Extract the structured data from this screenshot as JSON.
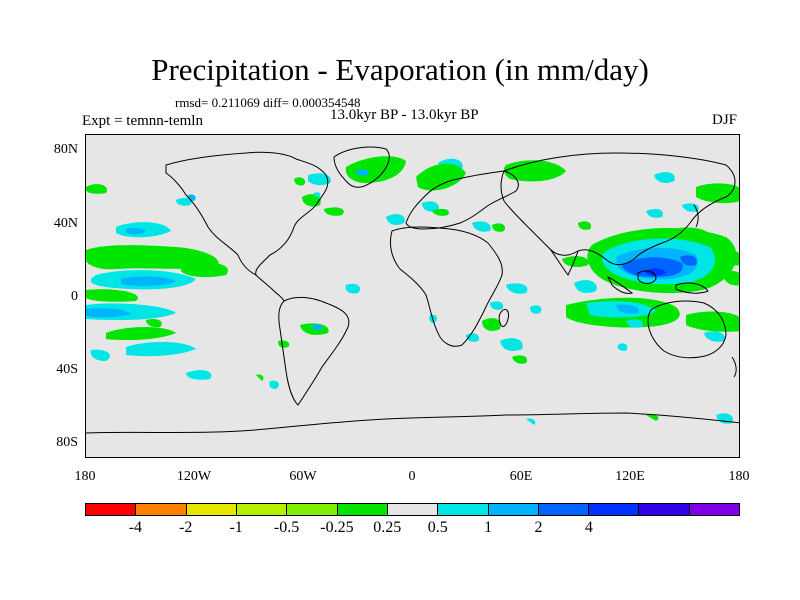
{
  "title": "Precipitation - Evaporation (in mm/day)",
  "stats": "rmsd= 0.211069 diff= 0.000354548",
  "subtitle": "13.0kyr BP - 13.0kyr BP",
  "experiment": "Expt = temnn-temln",
  "season": "DJF",
  "y_ticks": [
    "80N",
    "40N",
    "0",
    "40S",
    "80S"
  ],
  "x_ticks": [
    "180",
    "120W",
    "60W",
    "0",
    "60E",
    "120E",
    "180"
  ],
  "colorbar": {
    "colors": [
      "#ff0000",
      "#ff8000",
      "#e6e600",
      "#b4f000",
      "#82f000",
      "#00e600",
      "#e6e6e6",
      "#00e6e6",
      "#00b4ff",
      "#0064ff",
      "#0032ff",
      "#3200e6",
      "#8200e6"
    ],
    "labels": [
      "-4",
      "-2",
      "-1",
      "-0.5",
      "-0.25",
      "0.25",
      "0.5",
      "1",
      "2",
      "4"
    ]
  },
  "colors": {
    "land_background": "#e6e6e6",
    "coastline": "#000000",
    "light_green": "#82f000",
    "green": "#00e600",
    "cyan": "#00e6e6",
    "light_blue": "#00b4ff",
    "blue": "#0064ff",
    "dark_blue": "#0032ff"
  }
}
